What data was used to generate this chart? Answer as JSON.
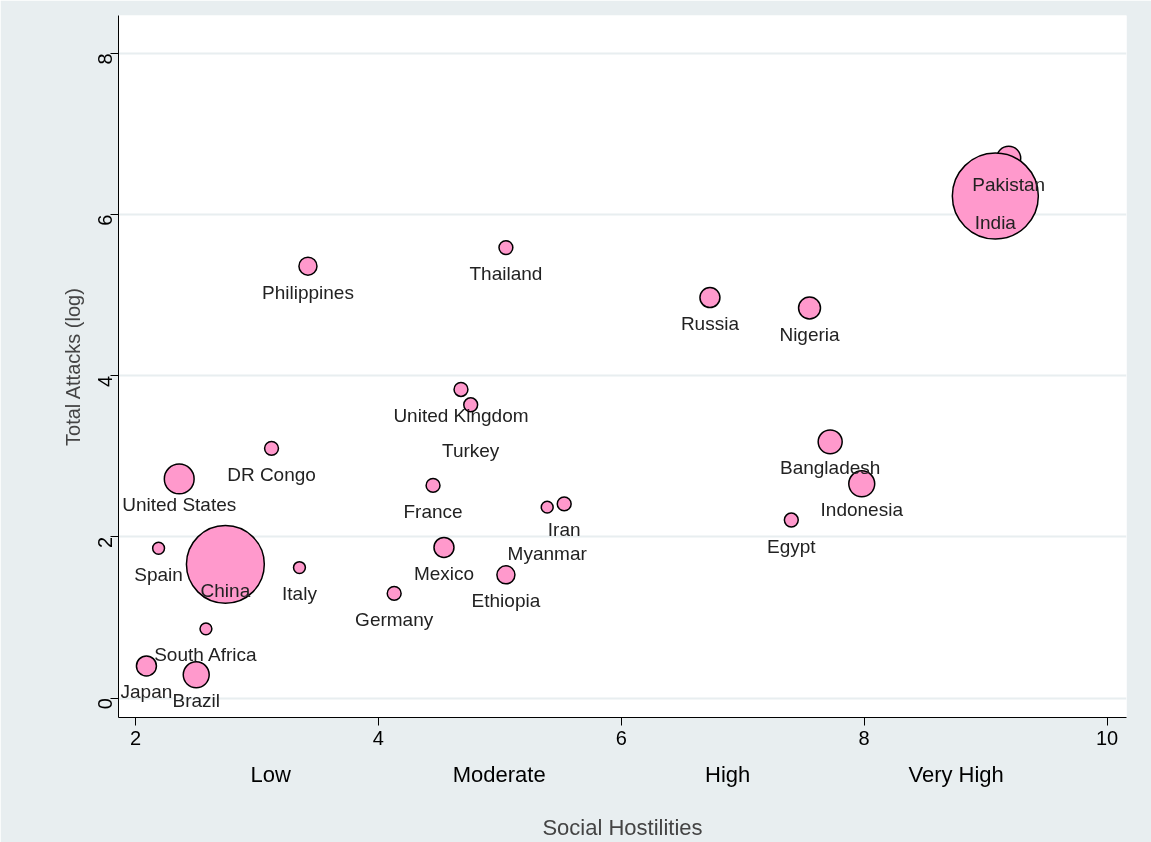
{
  "chart_data": {
    "type": "bubble",
    "xlabel": "Social Hostilities",
    "ylabel": "Total Attacks (log)",
    "x": [
      9.19,
      9.08,
      5.05,
      3.42,
      6.73,
      7.55,
      4.68,
      4.76,
      3.12,
      2.36,
      7.72,
      7.98,
      4.45,
      5.53,
      5.39,
      7.4,
      2.19,
      2.74,
      3.35,
      4.54,
      5.05,
      4.13,
      2.58,
      2.09,
      2.5
    ],
    "series": [
      {
        "color": "#ff99cc",
        "values": [
          6.7,
          6.23,
          5.59,
          5.36,
          4.97,
          4.84,
          3.83,
          3.64,
          3.1,
          2.72,
          3.18,
          2.66,
          2.64,
          2.41,
          2.37,
          2.21,
          1.86,
          1.66,
          1.62,
          1.87,
          1.53,
          1.3,
          0.86,
          0.4,
          0.29
        ],
        "sizes": [
          0.078,
          1,
          0.026,
          0.044,
          0.054,
          0.065,
          0.026,
          0.026,
          0.026,
          0.12,
          0.078,
          0.091,
          0.026,
          0.026,
          0.019,
          0.026,
          0.019,
          0.82,
          0.019,
          0.054,
          0.044,
          0.026,
          0.019,
          0.054,
          0.091
        ]
      }
    ],
    "annotations": [
      {
        "text": "Pakistan",
        "x": 9.19,
        "y": 6.7
      },
      {
        "text": "India",
        "x": 9.08,
        "y": 6.23
      },
      {
        "text": "Thailand",
        "x": 5.05,
        "y": 5.59
      },
      {
        "text": "Philippines",
        "x": 3.42,
        "y": 5.36
      },
      {
        "text": "Russia",
        "x": 6.73,
        "y": 4.97
      },
      {
        "text": "Nigeria",
        "x": 7.55,
        "y": 4.84
      },
      {
        "text": "United Kingdom",
        "x": 4.68,
        "y": 3.83
      },
      {
        "text": "Turkey",
        "x": 4.76,
        "y": 3.64
      },
      {
        "text": "DR Congo",
        "x": 3.12,
        "y": 3.1
      },
      {
        "text": "United States",
        "x": 2.36,
        "y": 2.72
      },
      {
        "text": "Bangladesh",
        "x": 7.72,
        "y": 3.18
      },
      {
        "text": "Indonesia",
        "x": 7.98,
        "y": 2.66
      },
      {
        "text": "France",
        "x": 4.45,
        "y": 2.64
      },
      {
        "text": "Iran",
        "x": 5.53,
        "y": 2.41
      },
      {
        "text": "Myanmar",
        "x": 5.39,
        "y": 2.37
      },
      {
        "text": "Egypt",
        "x": 7.4,
        "y": 2.21
      },
      {
        "text": "Spain",
        "x": 2.19,
        "y": 1.86
      },
      {
        "text": "China",
        "x": 2.74,
        "y": 1.66
      },
      {
        "text": "Italy",
        "x": 3.35,
        "y": 1.62
      },
      {
        "text": "Mexico",
        "x": 4.54,
        "y": 1.87
      },
      {
        "text": "Ethiopia",
        "x": 5.05,
        "y": 1.53
      },
      {
        "text": "Germany",
        "x": 4.13,
        "y": 1.3
      },
      {
        "text": "South Africa",
        "x": 2.58,
        "y": 0.86
      },
      {
        "text": "Japan",
        "x": 2.09,
        "y": 0.4
      },
      {
        "text": "Brazil",
        "x": 2.5,
        "y": 0.29
      },
      "Low",
      "Moderate",
      "High",
      "Very High"
    ],
    "xlim": [
      1.86,
      10.16
    ],
    "xticks": [
      2,
      4,
      6,
      8,
      10
    ],
    "ylim": [
      -0.24,
      8.47
    ],
    "yticks": [
      0,
      2,
      4,
      6,
      8
    ],
    "grid": "y",
    "marker": "circle"
  }
}
